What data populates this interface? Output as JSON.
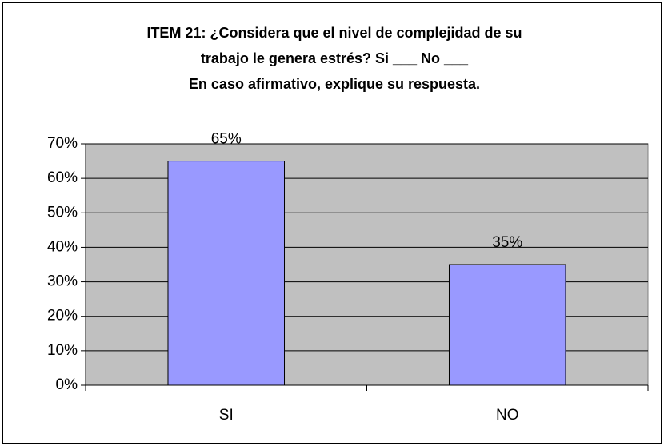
{
  "chart_data": {
    "type": "bar",
    "title": [
      "ITEM 21: ¿Considera que el nivel de complejidad de su",
      "trabajo le genera estrés? Si ___ No ___",
      "En caso afirmativo, explique su respuesta."
    ],
    "categories": [
      "SI",
      "NO"
    ],
    "values": [
      65,
      35
    ],
    "value_labels": [
      "65%",
      "35%"
    ],
    "color": "#9999ff",
    "ylim": [
      0,
      70
    ],
    "yticks": [
      {
        "value": 0,
        "label": "0%"
      },
      {
        "value": 10,
        "label": "10%"
      },
      {
        "value": 20,
        "label": "20%"
      },
      {
        "value": 30,
        "label": "30%"
      },
      {
        "value": 40,
        "label": "40%"
      },
      {
        "value": 50,
        "label": "50%"
      },
      {
        "value": 60,
        "label": "60%"
      },
      {
        "value": 70,
        "label": "70%"
      }
    ],
    "grid": true
  }
}
